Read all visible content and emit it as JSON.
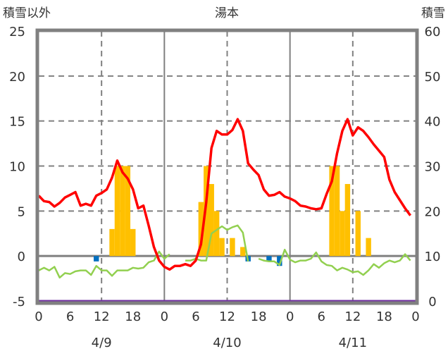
{
  "chart_data": {
    "type": "bar+line",
    "title": "湯本",
    "left_axis_label": "積雪以外",
    "right_axis_label": "積雪",
    "left_ylim": [
      -5,
      25
    ],
    "left_ticks": [
      "25",
      "20",
      "15",
      "10",
      "5",
      "0",
      "-5"
    ],
    "right_ylim": [
      0,
      60
    ],
    "right_ticks": [
      "60",
      "50",
      "40",
      "30",
      "20",
      "10",
      "0"
    ],
    "x_tick_labels": [
      "0",
      "6",
      "12",
      "18",
      "0",
      "6",
      "12",
      "18",
      "0",
      "6",
      "12",
      "18",
      "0"
    ],
    "day_labels": [
      "4/9",
      "4/10",
      "4/11"
    ],
    "x_unit": "hours since 4/9 0:00",
    "grid": true,
    "colors": {
      "red_line": "#ff0000",
      "green_line": "#92d050",
      "yellow_bars": "#ffc000",
      "blue_bars": "#0070c0",
      "purple_line": "#7030a0",
      "frame": "#808080"
    },
    "yellow_bars": [
      [
        14,
        3
      ],
      [
        15,
        10
      ],
      [
        16,
        10
      ],
      [
        17,
        10
      ],
      [
        18,
        3
      ],
      [
        31,
        6
      ],
      [
        32,
        10
      ],
      [
        33,
        8
      ],
      [
        34,
        5
      ],
      [
        35,
        2
      ],
      [
        37,
        2
      ],
      [
        39,
        1
      ],
      [
        56,
        10
      ],
      [
        57,
        10
      ],
      [
        58,
        5
      ],
      [
        59,
        8
      ],
      [
        61,
        5
      ],
      [
        63,
        2
      ]
    ],
    "blue_bars": [
      [
        11,
        -0.6
      ],
      [
        40,
        -0.6
      ],
      [
        44,
        -0.6
      ],
      [
        46,
        -1.1
      ]
    ],
    "red_line": [
      6.7,
      6.1,
      6.0,
      5.5,
      5.9,
      6.5,
      6.8,
      7.1,
      5.6,
      5.8,
      5.6,
      6.7,
      7.0,
      7.4,
      8.7,
      10.6,
      9.3,
      8.6,
      7.4,
      5.3,
      5.6,
      3.4,
      1.0,
      -0.5,
      -1.2,
      -1.5,
      -1.1,
      -1.1,
      -0.9,
      -1.1,
      -0.5,
      1.3,
      6.0,
      12.0,
      13.9,
      13.5,
      13.5,
      14.0,
      15.2,
      13.9,
      10.3,
      9.6,
      9.0,
      7.4,
      6.7,
      6.8,
      7.1,
      6.6,
      6.4,
      6.1,
      5.6,
      5.5,
      5.3,
      5.2,
      5.3,
      6.9,
      8.3,
      11.4,
      13.9,
      15.2,
      13.4,
      14.3,
      13.9,
      13.2,
      12.4,
      11.7,
      11.0,
      8.5,
      7.1,
      6.2,
      5.3,
      4.5
    ],
    "green_line": [
      -1.6,
      -1.3,
      -1.6,
      -1.2,
      -2.4,
      -1.9,
      -2.0,
      -1.7,
      -1.6,
      -1.6,
      -2.1,
      -1.1,
      -1.6,
      -1.6,
      -2.2,
      -1.6,
      -1.6,
      -1.6,
      -1.3,
      -1.4,
      -1.3,
      -0.7,
      -0.5,
      0.5,
      -0.3,
      0.2,
      null,
      null,
      -0.5,
      -0.5,
      -0.3,
      -0.5,
      -0.5,
      2.5,
      2.9,
      3.3,
      2.9,
      3.2,
      3.4,
      2.6,
      -0.6,
      null,
      -0.3,
      -0.5,
      -0.6,
      -0.6,
      -1.0,
      0.7,
      -0.4,
      -0.7,
      -0.5,
      -0.5,
      -0.3,
      0.4,
      -0.6,
      -1.0,
      -1.1,
      -1.6,
      -1.3,
      -1.5,
      -1.8,
      -1.7,
      -2.1,
      -1.6,
      -0.9,
      -1.3,
      -0.8,
      -0.5,
      -0.7,
      -0.5,
      0.2,
      -0.5
    ],
    "purple_line_right_axis": 0
  }
}
